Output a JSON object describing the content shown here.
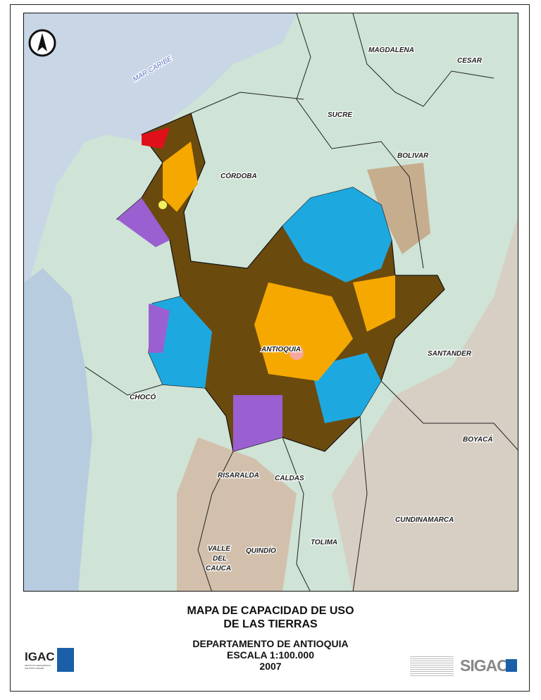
{
  "map": {
    "labels": {
      "sea": "MAR CARIBE",
      "magdalena": "MAGDALENA",
      "cesar": "CESAR",
      "sucre": "SUCRE",
      "bolivar": "BOLIVAR",
      "cordoba": "CÓRDOBA",
      "antioquia": "ANTIOQUIA",
      "santander": "SANTANDER",
      "choco": "CHOCÓ",
      "boyaca": "BOYACÁ",
      "risaralda": "RISARALDA",
      "caldas": "CALDAS",
      "cundinamarca": "CUNDINAMARCA",
      "tolima": "TOLIMA",
      "valle1": "VALLE",
      "valle2": "DEL",
      "valle3": "CAUCA",
      "quindio": "QUINDÍO"
    },
    "north_arrow": "north-arrow-icon",
    "colors": {
      "sea": "#c9d6e6",
      "lowland": "#cfe3d6",
      "antioquia_base": "#6b4a0e",
      "class_blue": "#1ea8e0",
      "class_orange": "#f5a800",
      "class_purple": "#9a5fd0",
      "class_red": "#e0101a",
      "class_yellow": "#f0f060",
      "mountains": "#c9b8a8"
    }
  },
  "title": {
    "line1": "MAPA DE CAPACIDAD DE USO",
    "line2": "DE LAS TIERRAS"
  },
  "subtitle": {
    "line1": "DEPARTAMENTO DE ANTIOQUIA",
    "line2": "ESCALA 1:100.000",
    "line3": "2007"
  },
  "logos": {
    "igac": "IGAC",
    "igac_sub": "INSTITUTO GEOGRÁFICO AGUSTÍN CODAZZI",
    "sigac": "SIGAC"
  }
}
